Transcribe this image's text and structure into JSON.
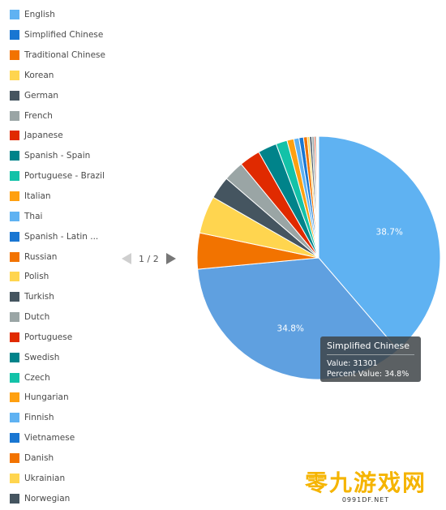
{
  "legend": {
    "items": [
      {
        "label": "English",
        "color": "#5fb2f2"
      },
      {
        "label": "Simplified Chinese",
        "color": "#1976d2"
      },
      {
        "label": "Traditional Chinese",
        "color": "#f27300"
      },
      {
        "label": "Korean",
        "color": "#ffd54f"
      },
      {
        "label": "German",
        "color": "#455560"
      },
      {
        "label": "French",
        "color": "#9aa5a5"
      },
      {
        "label": "Japanese",
        "color": "#e02a00"
      },
      {
        "label": "Spanish - Spain",
        "color": "#00838a"
      },
      {
        "label": "Portuguese - Brazil",
        "color": "#13c2a8"
      },
      {
        "label": "Italian",
        "color": "#ffa010"
      },
      {
        "label": "Thai",
        "color": "#5fb2f2"
      },
      {
        "label": "Spanish - Latin ...",
        "color": "#1976d2"
      },
      {
        "label": "Russian",
        "color": "#f27300"
      },
      {
        "label": "Polish",
        "color": "#ffd54f"
      },
      {
        "label": "Turkish",
        "color": "#455560"
      },
      {
        "label": "Dutch",
        "color": "#9aa5a5"
      },
      {
        "label": "Portuguese",
        "color": "#e02a00"
      },
      {
        "label": "Swedish",
        "color": "#00838a"
      },
      {
        "label": "Czech",
        "color": "#13c2a8"
      },
      {
        "label": "Hungarian",
        "color": "#ffa010"
      },
      {
        "label": "Finnish",
        "color": "#5fb2f2"
      },
      {
        "label": "Vietnamese",
        "color": "#1976d2"
      },
      {
        "label": "Danish",
        "color": "#f27300"
      },
      {
        "label": "Ukrainian",
        "color": "#ffd54f"
      },
      {
        "label": "Norwegian",
        "color": "#455560"
      }
    ]
  },
  "pager": {
    "text": "1 / 2"
  },
  "chart_data": {
    "type": "pie",
    "slices": [
      {
        "name": "English",
        "percent": 38.7,
        "color": "#5fb2f2",
        "label": "38.7%"
      },
      {
        "name": "Simplified Chinese",
        "percent": 34.8,
        "color": "#5fa0e0",
        "label": "34.8%"
      },
      {
        "name": "Traditional Chinese",
        "percent": 4.8,
        "color": "#f27300"
      },
      {
        "name": "Korean",
        "percent": 5.0,
        "color": "#ffd54f"
      },
      {
        "name": "German",
        "percent": 3.0,
        "color": "#455560"
      },
      {
        "name": "French",
        "percent": 2.7,
        "color": "#9aa5a5"
      },
      {
        "name": "Japanese",
        "percent": 2.8,
        "color": "#e02a00"
      },
      {
        "name": "Spanish - Spain",
        "percent": 2.5,
        "color": "#00838a"
      },
      {
        "name": "Portuguese - Brazil",
        "percent": 1.5,
        "color": "#13c2a8"
      },
      {
        "name": "Italian",
        "percent": 0.9,
        "color": "#ffa010"
      },
      {
        "name": "Thai",
        "percent": 0.7,
        "color": "#5fb2f2"
      },
      {
        "name": "Spanish - Latin ...",
        "percent": 0.6,
        "color": "#1976d2"
      },
      {
        "name": "Russian",
        "percent": 0.5,
        "color": "#f27300"
      },
      {
        "name": "Polish",
        "percent": 0.3,
        "color": "#ffd54f"
      },
      {
        "name": "Turkish",
        "percent": 0.3,
        "color": "#455560"
      },
      {
        "name": "Dutch",
        "percent": 0.3,
        "color": "#9aa5a5"
      },
      {
        "name": "Portuguese",
        "percent": 0.2,
        "color": "#e02a00"
      },
      {
        "name": "Swedish",
        "percent": 0.15,
        "color": "#00838a"
      },
      {
        "name": "Czech",
        "percent": 0.1,
        "color": "#13c2a8"
      },
      {
        "name": "Hungarian",
        "percent": 0.1,
        "color": "#ffa010"
      },
      {
        "name": "Finnish",
        "percent": 0.05,
        "color": "#5fb2f2"
      }
    ],
    "highlighted": "Simplified Chinese"
  },
  "tooltip": {
    "title": "Simplified Chinese",
    "value_line": "Value: 31301",
    "percent_line": "Percent Value: 34.8%"
  },
  "watermark": {
    "main": "零九游戏网",
    "sub": "0991DF.NET"
  }
}
